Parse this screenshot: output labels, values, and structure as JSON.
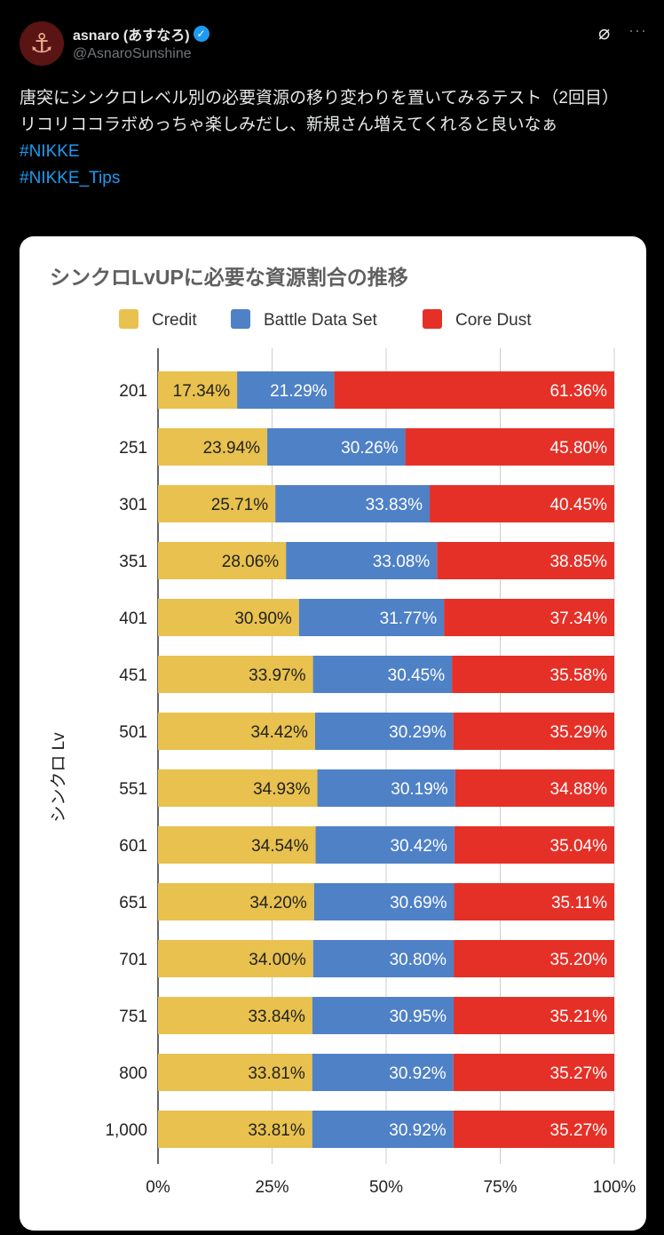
{
  "tweet": {
    "author_name": "asnaro (あすなろ)",
    "handle": "@AsnaroSunshine",
    "avatar_icon": "anchor-icon",
    "text_line1": "唐突にシンクロレベル別の必要資源の移り変わりを置いてみるテスト（2回目）",
    "text_line2": "リコリココラボめっちゃ楽しみだし、新規さん増えてくれると良いなぁ",
    "hashtags": [
      "#NIKKE",
      "#NIKKE_Tips"
    ]
  },
  "chart_data": {
    "type": "bar",
    "orientation": "horizontal",
    "stacked": "percent",
    "title": "シンクロLvUPに必要な資源割合の推移",
    "ylabel": "シンクロ Lv",
    "xlabel": "",
    "xlim": [
      0,
      100
    ],
    "xticks": [
      "0%",
      "25%",
      "50%",
      "75%",
      "100%"
    ],
    "grid": true,
    "legend_placement": "top",
    "categories": [
      "201",
      "251",
      "301",
      "351",
      "401",
      "451",
      "501",
      "551",
      "601",
      "651",
      "701",
      "751",
      "800",
      "1,000"
    ],
    "series": [
      {
        "name": "Credit",
        "color": "#E8C14E",
        "values": [
          17.34,
          23.94,
          25.71,
          28.06,
          30.9,
          33.97,
          34.42,
          34.93,
          34.54,
          34.2,
          34.0,
          33.84,
          33.81,
          33.81
        ]
      },
      {
        "name": "Battle Data Set",
        "color": "#4F81C7",
        "values": [
          21.29,
          30.26,
          33.83,
          33.08,
          31.77,
          30.45,
          30.29,
          30.19,
          30.42,
          30.69,
          30.8,
          30.95,
          30.92,
          30.92
        ]
      },
      {
        "name": "Core Dust",
        "color": "#E53027",
        "values": [
          61.36,
          45.8,
          40.45,
          38.85,
          37.34,
          35.58,
          35.29,
          34.88,
          35.04,
          35.11,
          35.2,
          35.21,
          35.27,
          35.27
        ]
      }
    ]
  }
}
